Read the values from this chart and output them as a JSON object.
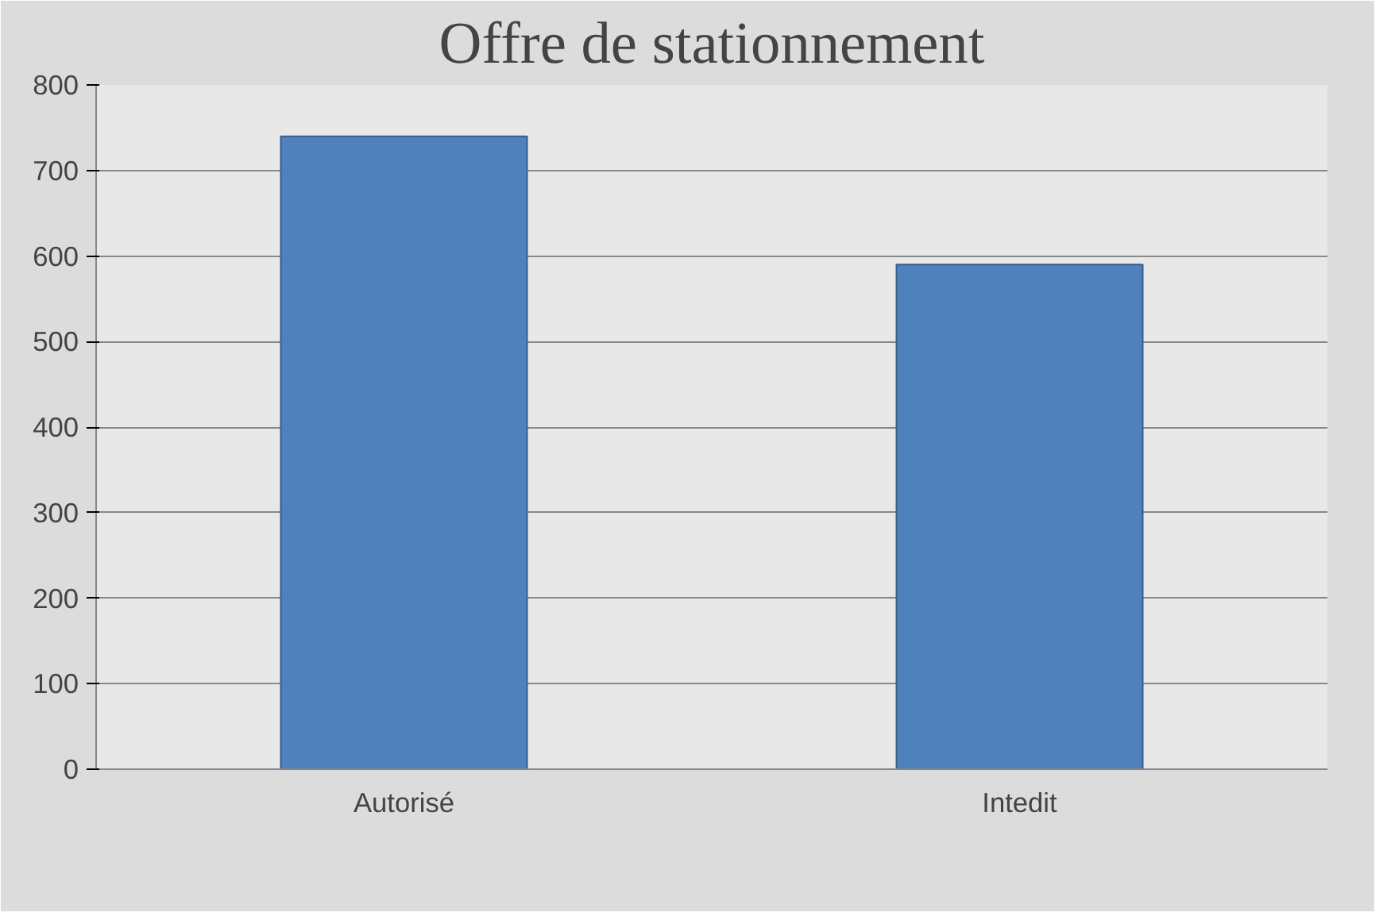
{
  "chart_data": {
    "type": "bar",
    "title": "Offre de stationnement",
    "categories": [
      "Autorisé",
      "Intedit"
    ],
    "values": [
      740,
      590
    ],
    "color": "#4f81bd",
    "ylim": [
      0,
      800
    ],
    "yticks": [
      0,
      100,
      200,
      300,
      400,
      500,
      600,
      700,
      800
    ],
    "grid": "y"
  }
}
